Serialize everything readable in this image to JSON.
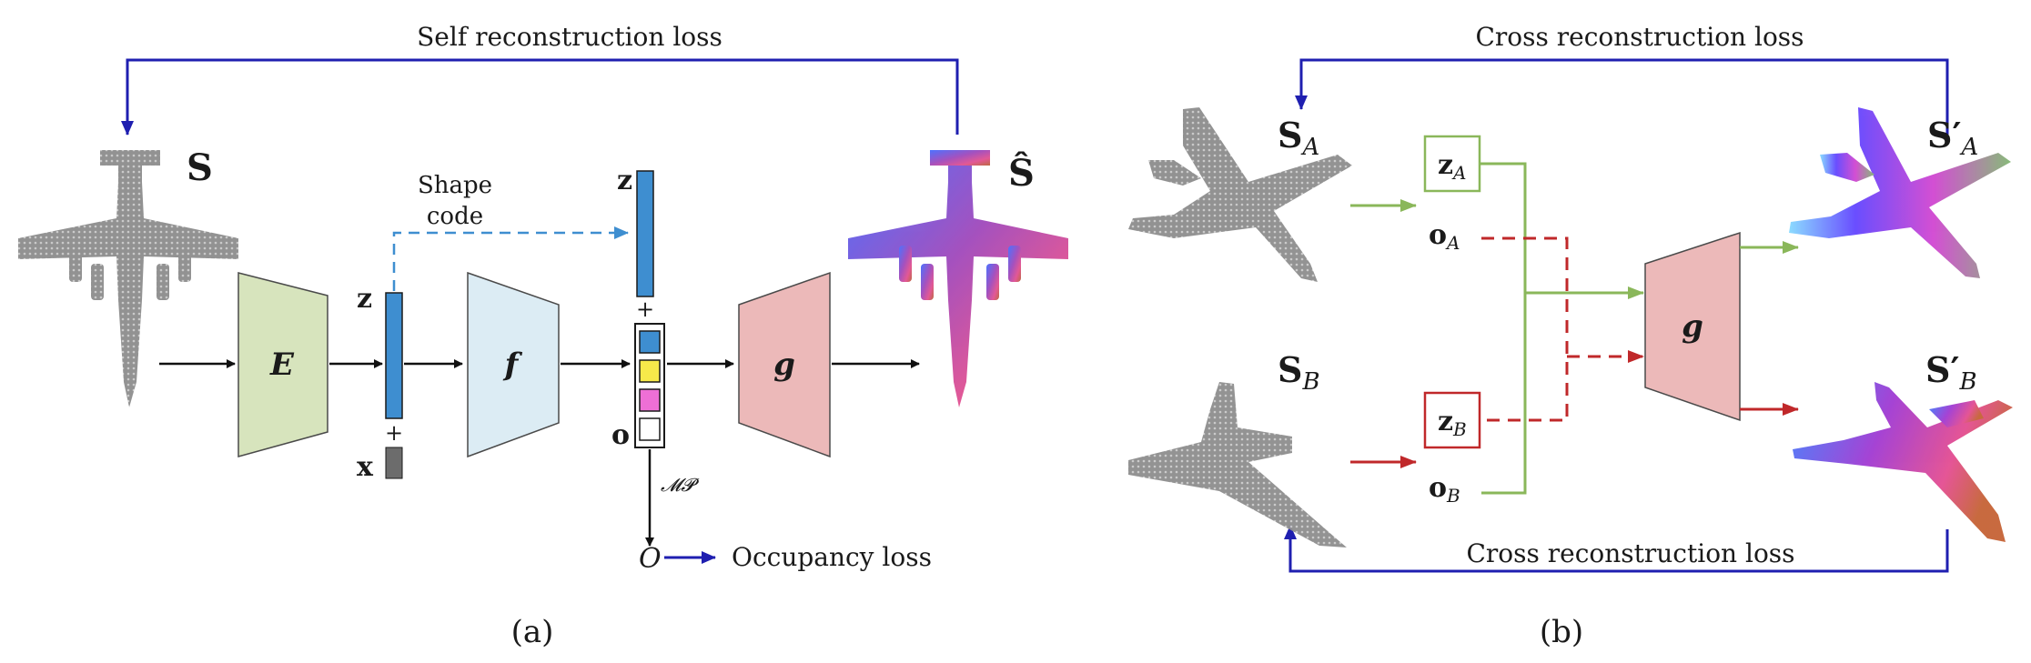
{
  "panel_a": {
    "caption": "(a)",
    "self_loss_label": "Self reconstruction loss",
    "input_shape_label": "S",
    "output_shape_label": "Ŝ",
    "encoder_label": "E",
    "f_label": "f",
    "g_label": "g",
    "z_label": "z",
    "x_label": "x",
    "z_top_label": "z",
    "o_label": "o",
    "plus_lower": "+",
    "plus_upper": "+",
    "shape_code_line1": "Shape",
    "shape_code_line2": "code",
    "mp_label": "𝓜𝓟",
    "occupancy_symbol": "O",
    "occupancy_loss_label": "Occupancy loss",
    "slot_colors": [
      "#3e8ed0",
      "#f7e94a",
      "#ee6fd6",
      "#ffffff"
    ]
  },
  "panel_b": {
    "caption": "(b)",
    "cross_loss_top": "Cross reconstruction loss",
    "cross_loss_bottom": "Cross reconstruction loss",
    "shape_a_base": "S",
    "shape_a_sub": "A",
    "shape_b_base": "S",
    "shape_b_sub": "B",
    "out_a_base": "S′",
    "out_a_sub": "A",
    "out_b_base": "S′",
    "out_b_sub": "B",
    "za_base": "z",
    "za_sub": "A",
    "zb_base": "z",
    "zb_sub": "B",
    "oa_base": "o",
    "oa_sub": "A",
    "ob_base": "o",
    "ob_sub": "B",
    "g_label": "g"
  },
  "colors": {
    "loss_arrow": "#1f1fb0",
    "encoder_fill": "#d7e4bd",
    "f_fill": "#dcecf4",
    "g_fill": "#ecb9b9",
    "code_bar": "#3e8ed0",
    "green_path": "#8ab75a",
    "red_path": "#c0282a",
    "shape_code_dashed": "#3e8ed0"
  }
}
